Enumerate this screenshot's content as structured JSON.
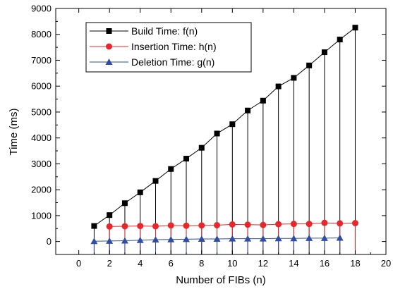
{
  "chart_data": {
    "type": "line",
    "xlabel": "Number of FIBs (n)",
    "ylabel": "Time (ms)",
    "xlim": [
      -1.5,
      20
    ],
    "ylim": [
      -500,
      9000
    ],
    "xticks": [
      0,
      2,
      4,
      6,
      8,
      10,
      12,
      14,
      16,
      18,
      20
    ],
    "yticks": [
      0,
      1000,
      2000,
      3000,
      4000,
      5000,
      6000,
      7000,
      8000,
      9000
    ],
    "grid": false,
    "legend_position": "top-left",
    "drop_lines": true,
    "series": [
      {
        "name": "Build Time: f(n)",
        "color": "#000000",
        "marker": "square",
        "x": [
          1,
          2,
          3,
          4,
          5,
          6,
          7,
          8,
          9,
          10,
          11,
          12,
          13,
          14,
          15,
          16,
          17,
          18
        ],
        "values": [
          600,
          1020,
          1480,
          1900,
          2340,
          2800,
          3200,
          3620,
          4170,
          4530,
          5060,
          5440,
          5990,
          6320,
          6800,
          7310,
          7800,
          8260
        ]
      },
      {
        "name": "Insertion Time: h(n)",
        "color": "#e8262b",
        "marker": "circle",
        "x": [
          2,
          3,
          4,
          5,
          6,
          7,
          8,
          9,
          10,
          11,
          12,
          13,
          14,
          15,
          16,
          17,
          18
        ],
        "values": [
          580,
          590,
          600,
          590,
          620,
          610,
          620,
          630,
          660,
          650,
          640,
          670,
          680,
          680,
          720,
          700,
          710
        ]
      },
      {
        "name": "Deletion Time: g(n)",
        "color": "#2f4da3",
        "marker": "triangle",
        "x": [
          1,
          2,
          3,
          4,
          5,
          6,
          7,
          8,
          9,
          10,
          11,
          12,
          13,
          14,
          15,
          16,
          17
        ],
        "values": [
          10,
          20,
          30,
          50,
          70,
          80,
          90,
          100,
          100,
          110,
          110,
          110,
          120,
          120,
          130,
          130,
          140
        ]
      }
    ]
  }
}
